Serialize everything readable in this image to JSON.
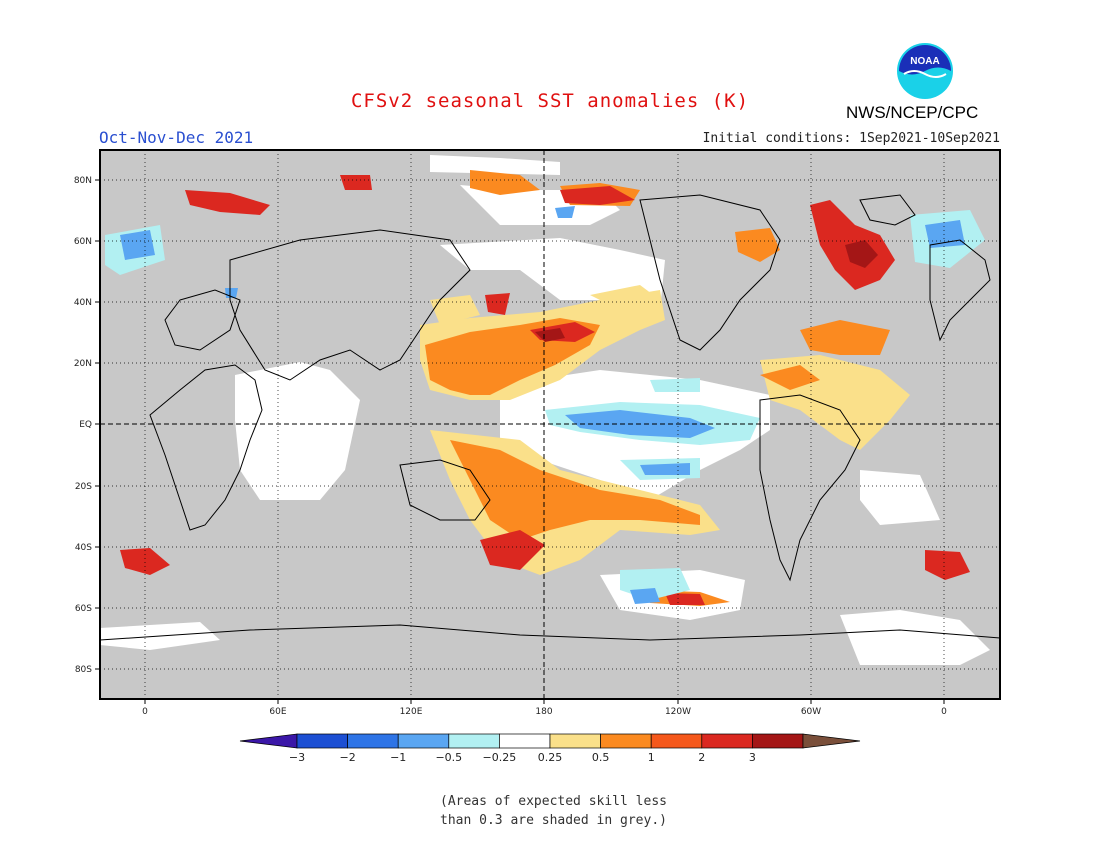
{
  "header": {
    "title": "CFSv2 seasonal SST anomalies (K)",
    "season": "Oct-Nov-Dec 2021",
    "initial_conditions": "Initial conditions: 1Sep2021-10Sep2021",
    "organization": "NWS/NCEP/CPC",
    "logo_text": "NOAA"
  },
  "map": {
    "lat_labels": [
      "80N",
      "60N",
      "40N",
      "20N",
      "EQ",
      "20S",
      "40S",
      "60S",
      "80S"
    ],
    "lon_labels": [
      "0",
      "60E",
      "120E",
      "180",
      "120W",
      "60W",
      "0"
    ],
    "land_color": "#c8c8c8"
  },
  "colorbar": {
    "labels": [
      "-3",
      "-2",
      "-1",
      "-0.5",
      "-0.25",
      "0.25",
      "0.5",
      "1",
      "2",
      "3"
    ],
    "colors": [
      "#3b17a8",
      "#1c4fd3",
      "#2e74e6",
      "#5aa6f2",
      "#b2f0f2",
      "#ffffff",
      "#fae08a",
      "#fb8a20",
      "#f5581b",
      "#db2820",
      "#a41616",
      "#7a4f3a"
    ]
  },
  "footnote": {
    "line1": "(Areas of expected skill less",
    "line2": "than 0.3 are shaded in grey.)"
  }
}
